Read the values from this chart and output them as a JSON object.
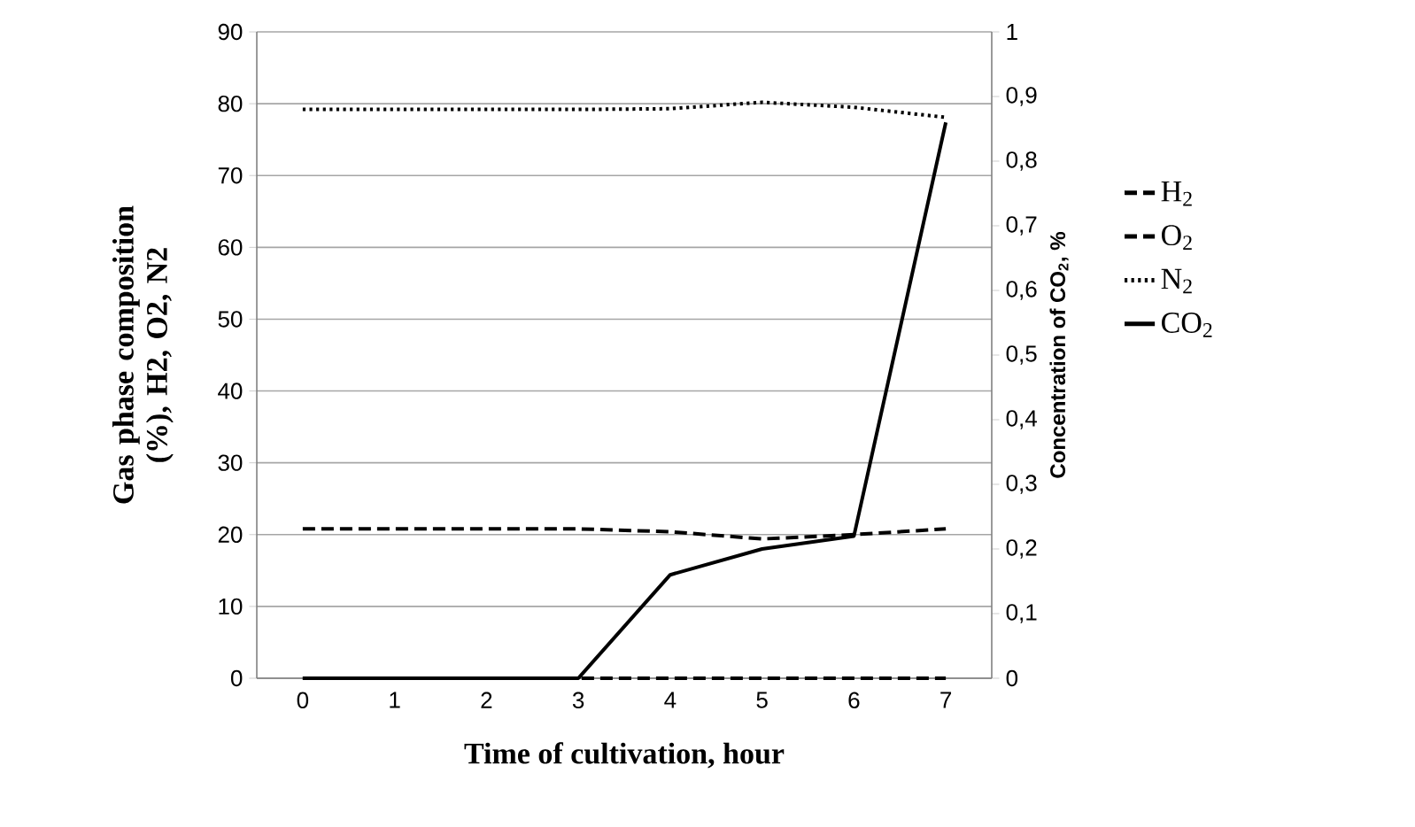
{
  "chart_data": {
    "type": "line",
    "categories": [
      "0",
      "1",
      "2",
      "3",
      "4",
      "5",
      "6",
      "7"
    ],
    "xlabel": "Time of cultivation, hour",
    "ylabel": "Gas phase composition (%), H2, O2, N2",
    "y2label": "Concentration of CO$_{2}$, %",
    "ylim": [
      0,
      90
    ],
    "yticks": [
      0,
      10,
      20,
      30,
      40,
      50,
      60,
      70,
      80,
      90
    ],
    "y2lim": [
      0,
      1
    ],
    "y2ticks": [
      0,
      {
        "value": 0.1,
        "label": "0,1"
      },
      {
        "value": 0.2,
        "label": "0,2"
      },
      {
        "value": 0.3,
        "label": "0,3"
      },
      {
        "value": 0.4,
        "label": "0,4"
      },
      {
        "value": 0.5,
        "label": "0,5"
      },
      {
        "value": 0.6,
        "label": "0,6"
      },
      {
        "value": 0.7,
        "label": "0,7"
      },
      {
        "value": 0.8,
        "label": "0,8"
      },
      {
        "value": 0.9,
        "label": "0,9"
      },
      1
    ],
    "grid": "y",
    "legend": "right",
    "marker": "none",
    "series": [
      {
        "name": "H$_{2}$",
        "color": "#000000",
        "line_style": "dashed",
        "values": [
          0,
          0,
          0,
          0,
          0,
          0,
          0,
          0
        ]
      },
      {
        "name": "O$_{2}$",
        "color": "#000000",
        "line_style": "dashed",
        "values": [
          20.8,
          20.8,
          20.8,
          20.8,
          20.4,
          19.4,
          20,
          20.8
        ]
      },
      {
        "name": "N$_{2}$",
        "color": "#000000",
        "line_style": "dotted",
        "values": [
          79.2,
          79.2,
          79.2,
          79.2,
          79.3,
          80.2,
          79.5,
          78.1
        ]
      },
      {
        "name": "CO$_{2}$",
        "color": "#000000",
        "line_style": "solid",
        "axis": "y2",
        "values": [
          0,
          0,
          0,
          0,
          0.16,
          0.2,
          0.22,
          0.86
        ]
      }
    ]
  }
}
